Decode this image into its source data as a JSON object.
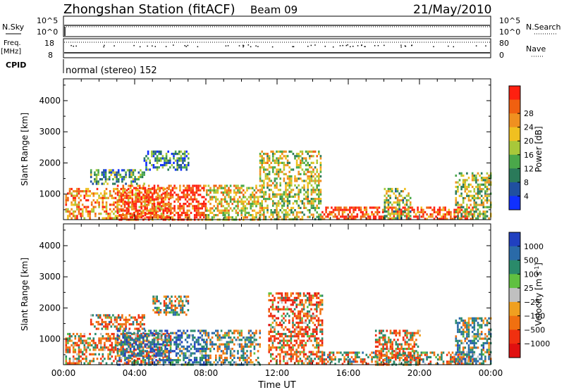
{
  "header": {
    "station": "Zhongshan Station (fitACF)",
    "beam": "Beam 09",
    "date": "21/May/2010"
  },
  "top_panels": {
    "nsky_label": "N.Sky",
    "nsky_ticks": [
      "10^5",
      "10^0"
    ],
    "nsearch_label": "N.Search",
    "nsearch_ticks": [
      "10^5",
      "10^0"
    ],
    "freq_label": "Freq.",
    "freq_unit": "[MHz]",
    "freq_ticks": [
      "18",
      "8"
    ],
    "nave_label": "Nave",
    "nave_ticks": [
      "80",
      "0"
    ],
    "cpid_label": "CPID",
    "cpid_text": "normal (stereo) 152"
  },
  "chart_data": [
    {
      "type": "heatmap",
      "name": "power",
      "ylabel": "Slant Range [km]",
      "yticks": [
        "1000",
        "2000",
        "3000",
        "4000"
      ],
      "ylim": [
        180,
        4700
      ],
      "xlim_hours": [
        0,
        24
      ],
      "xticks": [
        "00:00",
        "04:00",
        "08:00",
        "12:00",
        "16:00",
        "20:00",
        "00:00"
      ],
      "colorbar_label": "Power [dB]",
      "colorbar_ticks": [
        "4",
        "8",
        "12",
        "16",
        "20",
        "24",
        "28"
      ],
      "colorbar_range": [
        0,
        30
      ],
      "colorbar_colors": [
        "#1030ff",
        "#2050a0",
        "#2a7a5a",
        "#4aa84a",
        "#a8c83a",
        "#f0c020",
        "#f09020",
        "#f06010",
        "#ff2010"
      ],
      "regions": [
        {
          "t": [
            0.1,
            6.0
          ],
          "r": [
            200,
            1200
          ],
          "v": 22
        },
        {
          "t": [
            3.0,
            8.0
          ],
          "r": [
            180,
            1300
          ],
          "v": 27
        },
        {
          "t": [
            1.5,
            4.5
          ],
          "r": [
            1300,
            1800
          ],
          "v": 10
        },
        {
          "t": [
            4.5,
            7.0
          ],
          "r": [
            1800,
            2400
          ],
          "v": 8
        },
        {
          "t": [
            8.0,
            11.0
          ],
          "r": [
            200,
            1300
          ],
          "v": 18
        },
        {
          "t": [
            11.0,
            14.5
          ],
          "r": [
            200,
            2400
          ],
          "v": 16
        },
        {
          "t": [
            14.5,
            23.0
          ],
          "r": [
            200,
            600
          ],
          "v": 27
        },
        {
          "t": [
            18.0,
            19.5
          ],
          "r": [
            200,
            1200
          ],
          "v": 14
        },
        {
          "t": [
            22.0,
            24.0
          ],
          "r": [
            200,
            1700
          ],
          "v": 15
        }
      ]
    },
    {
      "type": "heatmap",
      "name": "velocity",
      "ylabel": "Slant Range [km]",
      "yticks": [
        "1000",
        "2000",
        "3000",
        "4000"
      ],
      "ylim": [
        180,
        4700
      ],
      "xlim_hours": [
        0,
        24
      ],
      "xticks": [
        "00:00",
        "04:00",
        "08:00",
        "12:00",
        "16:00",
        "20:00",
        "00:00"
      ],
      "xlabel": "Time UT",
      "colorbar_label": "Velocity [m s",
      "colorbar_unit_sup": "-1",
      "colorbar_ticks": [
        "1000",
        "500",
        "100",
        "25",
        "−25",
        "−100",
        "−500",
        "−1000"
      ],
      "colorbar_colors": [
        "#2040c0",
        "#2a6aa8",
        "#2a8a6a",
        "#60c040",
        "#c0c0c0",
        "#f0a020",
        "#f07010",
        "#f03010",
        "#e01010"
      ],
      "regions": [
        {
          "t": [
            0.1,
            6.0
          ],
          "r": [
            200,
            1200
          ],
          "v": -300
        },
        {
          "t": [
            3.0,
            8.0
          ],
          "r": [
            200,
            1300
          ],
          "v": 600
        },
        {
          "t": [
            1.5,
            4.5
          ],
          "r": [
            1300,
            1800
          ],
          "v": -150
        },
        {
          "t": [
            5.0,
            7.0
          ],
          "r": [
            1800,
            2400
          ],
          "v": 0
        },
        {
          "t": [
            8.0,
            11.0
          ],
          "r": [
            200,
            1300
          ],
          "v": 200
        },
        {
          "t": [
            11.5,
            14.5
          ],
          "r": [
            200,
            2500
          ],
          "v": -400
        },
        {
          "t": [
            14.5,
            23.0
          ],
          "r": [
            200,
            600
          ],
          "v": -100
        },
        {
          "t": [
            17.5,
            20.0
          ],
          "r": [
            200,
            1300
          ],
          "v": -250
        },
        {
          "t": [
            22.0,
            24.0
          ],
          "r": [
            200,
            1700
          ],
          "v": 400
        }
      ]
    }
  ]
}
